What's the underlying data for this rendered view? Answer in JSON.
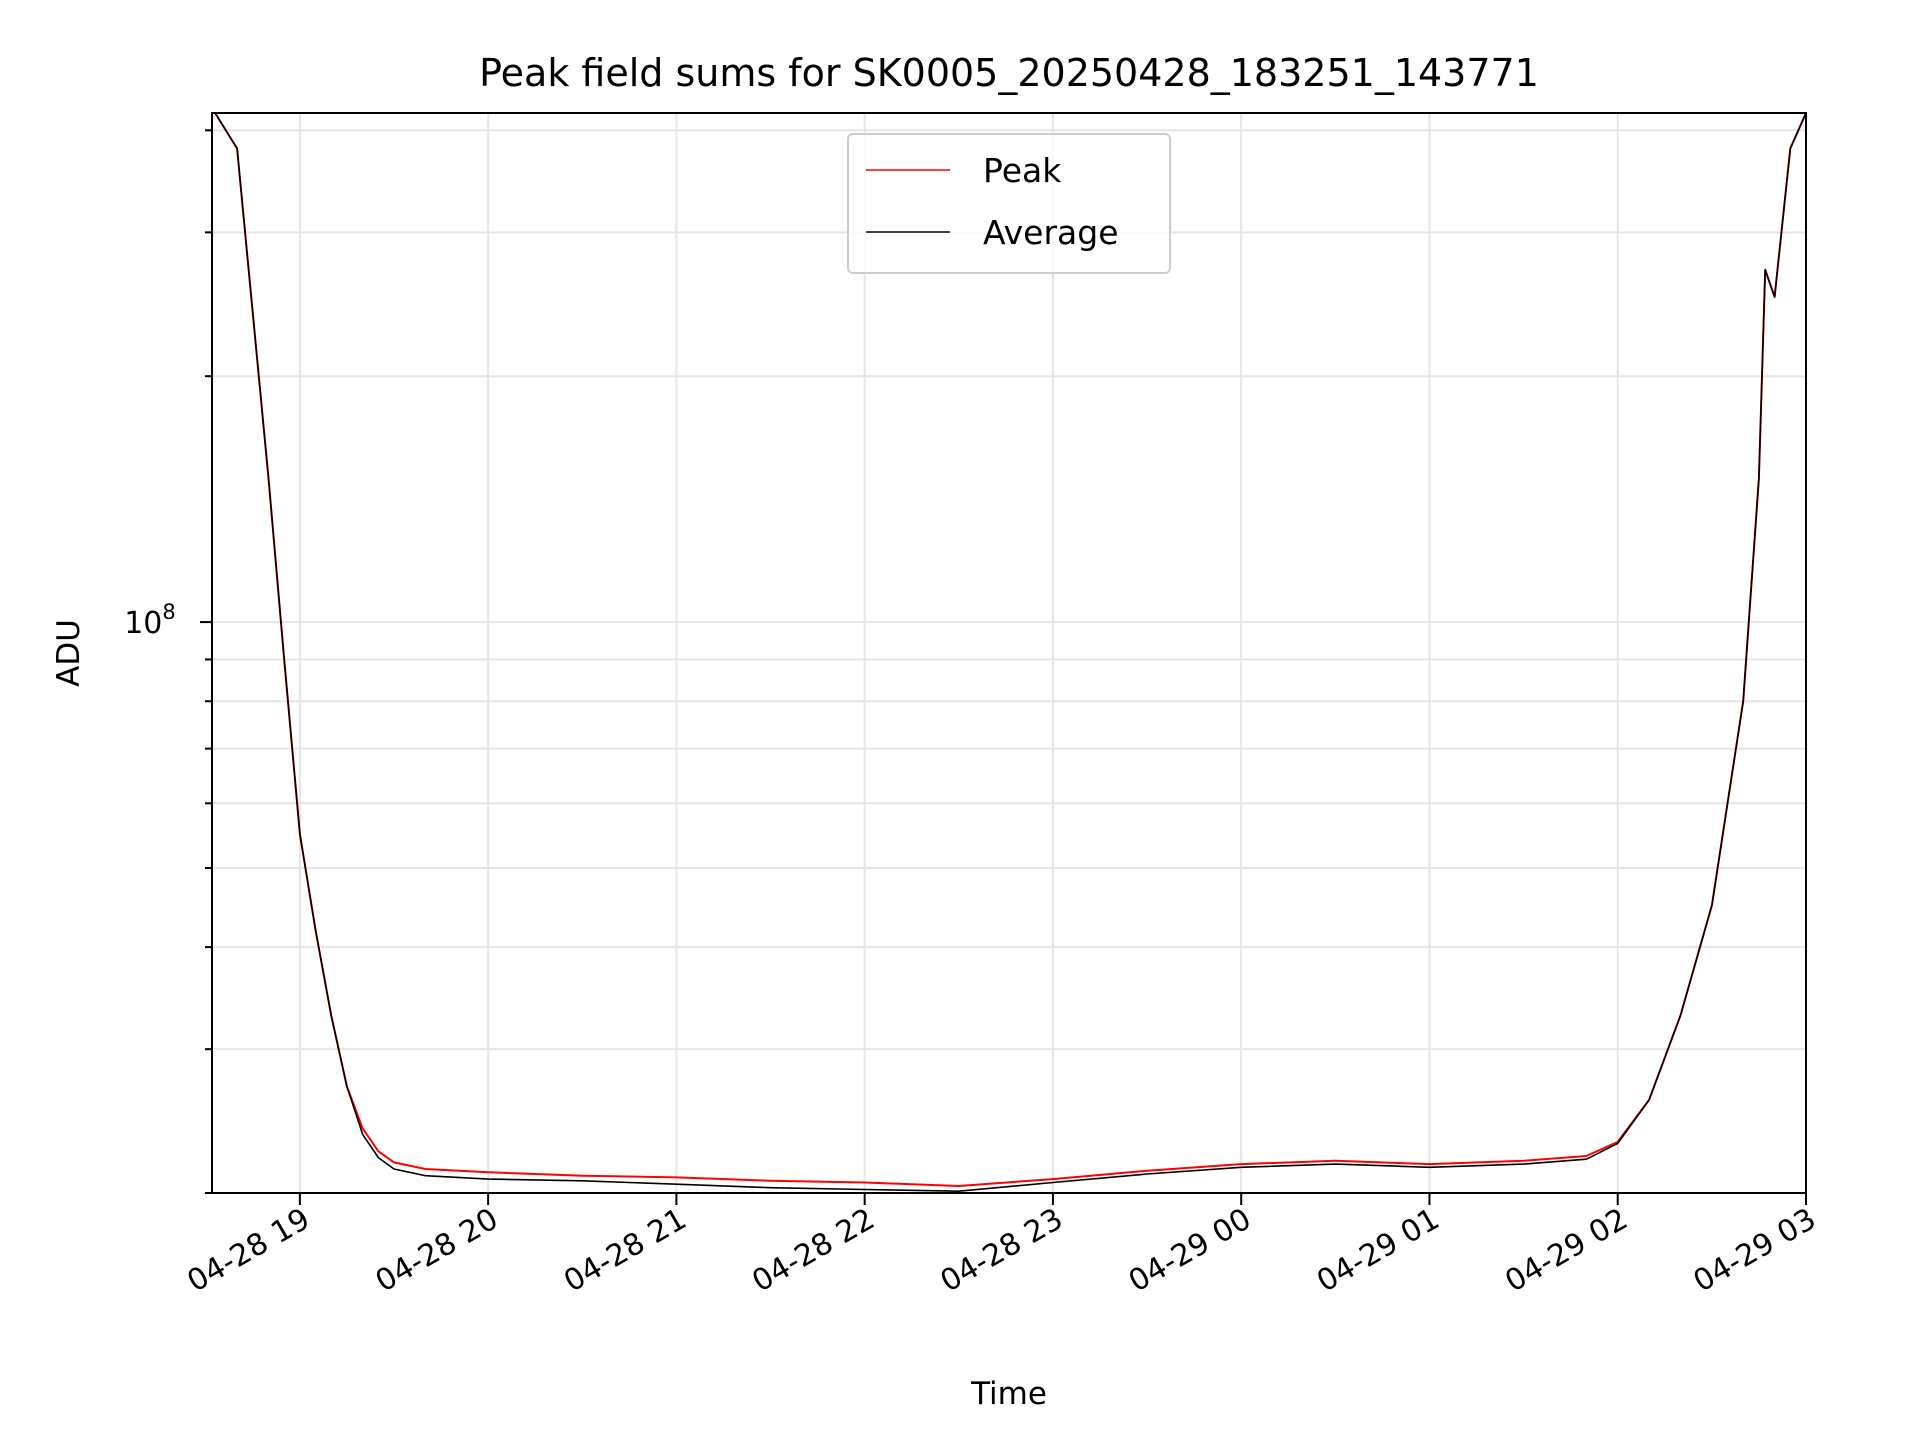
{
  "chart_data": {
    "type": "line",
    "title": "Peak field sums for SK0005_20250428_183251_143771",
    "xlabel": "Time",
    "ylabel": "ADU",
    "yscale": "log",
    "grid": true,
    "legend_position": "top-center",
    "x_ticks": [
      "04-28 19",
      "04-28 20",
      "04-28 21",
      "04-28 22",
      "04-28 23",
      "04-29 00",
      "04-29 01",
      "04-29 02",
      "04-29 03"
    ],
    "y_tick_major": {
      "base": "10",
      "exponent": "8"
    },
    "xlim": [
      "2025-04-28 18:32",
      "2025-04-29 03:00"
    ],
    "ylim": [
      20000000,
      420000000
    ],
    "series": [
      {
        "name": "Peak",
        "color": "#ff0000",
        "x": [
          "2025-04-28 18:33",
          "2025-04-28 18:40",
          "2025-04-28 18:50",
          "2025-04-28 18:55",
          "2025-04-28 19:00",
          "2025-04-28 19:05",
          "2025-04-28 19:10",
          "2025-04-28 19:15",
          "2025-04-28 19:20",
          "2025-04-28 19:25",
          "2025-04-28 19:30",
          "2025-04-28 19:40",
          "2025-04-28 20:00",
          "2025-04-28 20:30",
          "2025-04-28 21:00",
          "2025-04-28 21:30",
          "2025-04-28 22:00",
          "2025-04-28 22:30",
          "2025-04-28 23:00",
          "2025-04-28 23:30",
          "2025-04-29 00:00",
          "2025-04-29 00:30",
          "2025-04-29 01:00",
          "2025-04-29 01:30",
          "2025-04-29 01:50",
          "2025-04-29 02:00",
          "2025-04-29 02:10",
          "2025-04-29 02:20",
          "2025-04-29 02:30",
          "2025-04-29 02:40",
          "2025-04-29 02:45",
          "2025-04-29 02:47",
          "2025-04-29 02:50",
          "2025-04-29 02:55",
          "2025-04-29 03:00"
        ],
        "y": [
          420000000,
          380000000,
          150000000,
          90000000,
          55000000,
          42000000,
          33000000,
          27000000,
          24000000,
          22500000,
          21800000,
          21400000,
          21200000,
          21000000,
          20900000,
          20700000,
          20600000,
          20400000,
          20800000,
          21300000,
          21700000,
          21900000,
          21700000,
          21900000,
          22200000,
          23100000,
          26000000,
          33000000,
          45000000,
          80000000,
          150000000,
          270000000,
          250000000,
          380000000,
          420000000
        ]
      },
      {
        "name": "Average",
        "color": "#000000",
        "x": [
          "2025-04-28 18:33",
          "2025-04-28 18:40",
          "2025-04-28 18:50",
          "2025-04-28 18:55",
          "2025-04-28 19:00",
          "2025-04-28 19:05",
          "2025-04-28 19:10",
          "2025-04-28 19:15",
          "2025-04-28 19:20",
          "2025-04-28 19:25",
          "2025-04-28 19:30",
          "2025-04-28 19:40",
          "2025-04-28 20:00",
          "2025-04-28 20:30",
          "2025-04-28 21:00",
          "2025-04-28 21:30",
          "2025-04-28 22:00",
          "2025-04-28 22:30",
          "2025-04-28 23:00",
          "2025-04-28 23:30",
          "2025-04-29 00:00",
          "2025-04-29 00:30",
          "2025-04-29 01:00",
          "2025-04-29 01:30",
          "2025-04-29 01:50",
          "2025-04-29 02:00",
          "2025-04-29 02:10",
          "2025-04-29 02:20",
          "2025-04-29 02:30",
          "2025-04-29 02:40",
          "2025-04-29 02:45",
          "2025-04-29 02:47",
          "2025-04-29 02:50",
          "2025-04-29 02:55",
          "2025-04-29 03:00"
        ],
        "y": [
          420000000,
          380000000,
          150000000,
          90000000,
          55000000,
          42000000,
          33000000,
          27000000,
          23600000,
          22100000,
          21400000,
          21000000,
          20800000,
          20700000,
          20500000,
          20300000,
          20200000,
          20100000,
          20600000,
          21100000,
          21500000,
          21700000,
          21500000,
          21700000,
          22000000,
          23000000,
          26000000,
          33000000,
          45000000,
          80000000,
          150000000,
          270000000,
          250000000,
          380000000,
          420000000
        ]
      }
    ]
  }
}
